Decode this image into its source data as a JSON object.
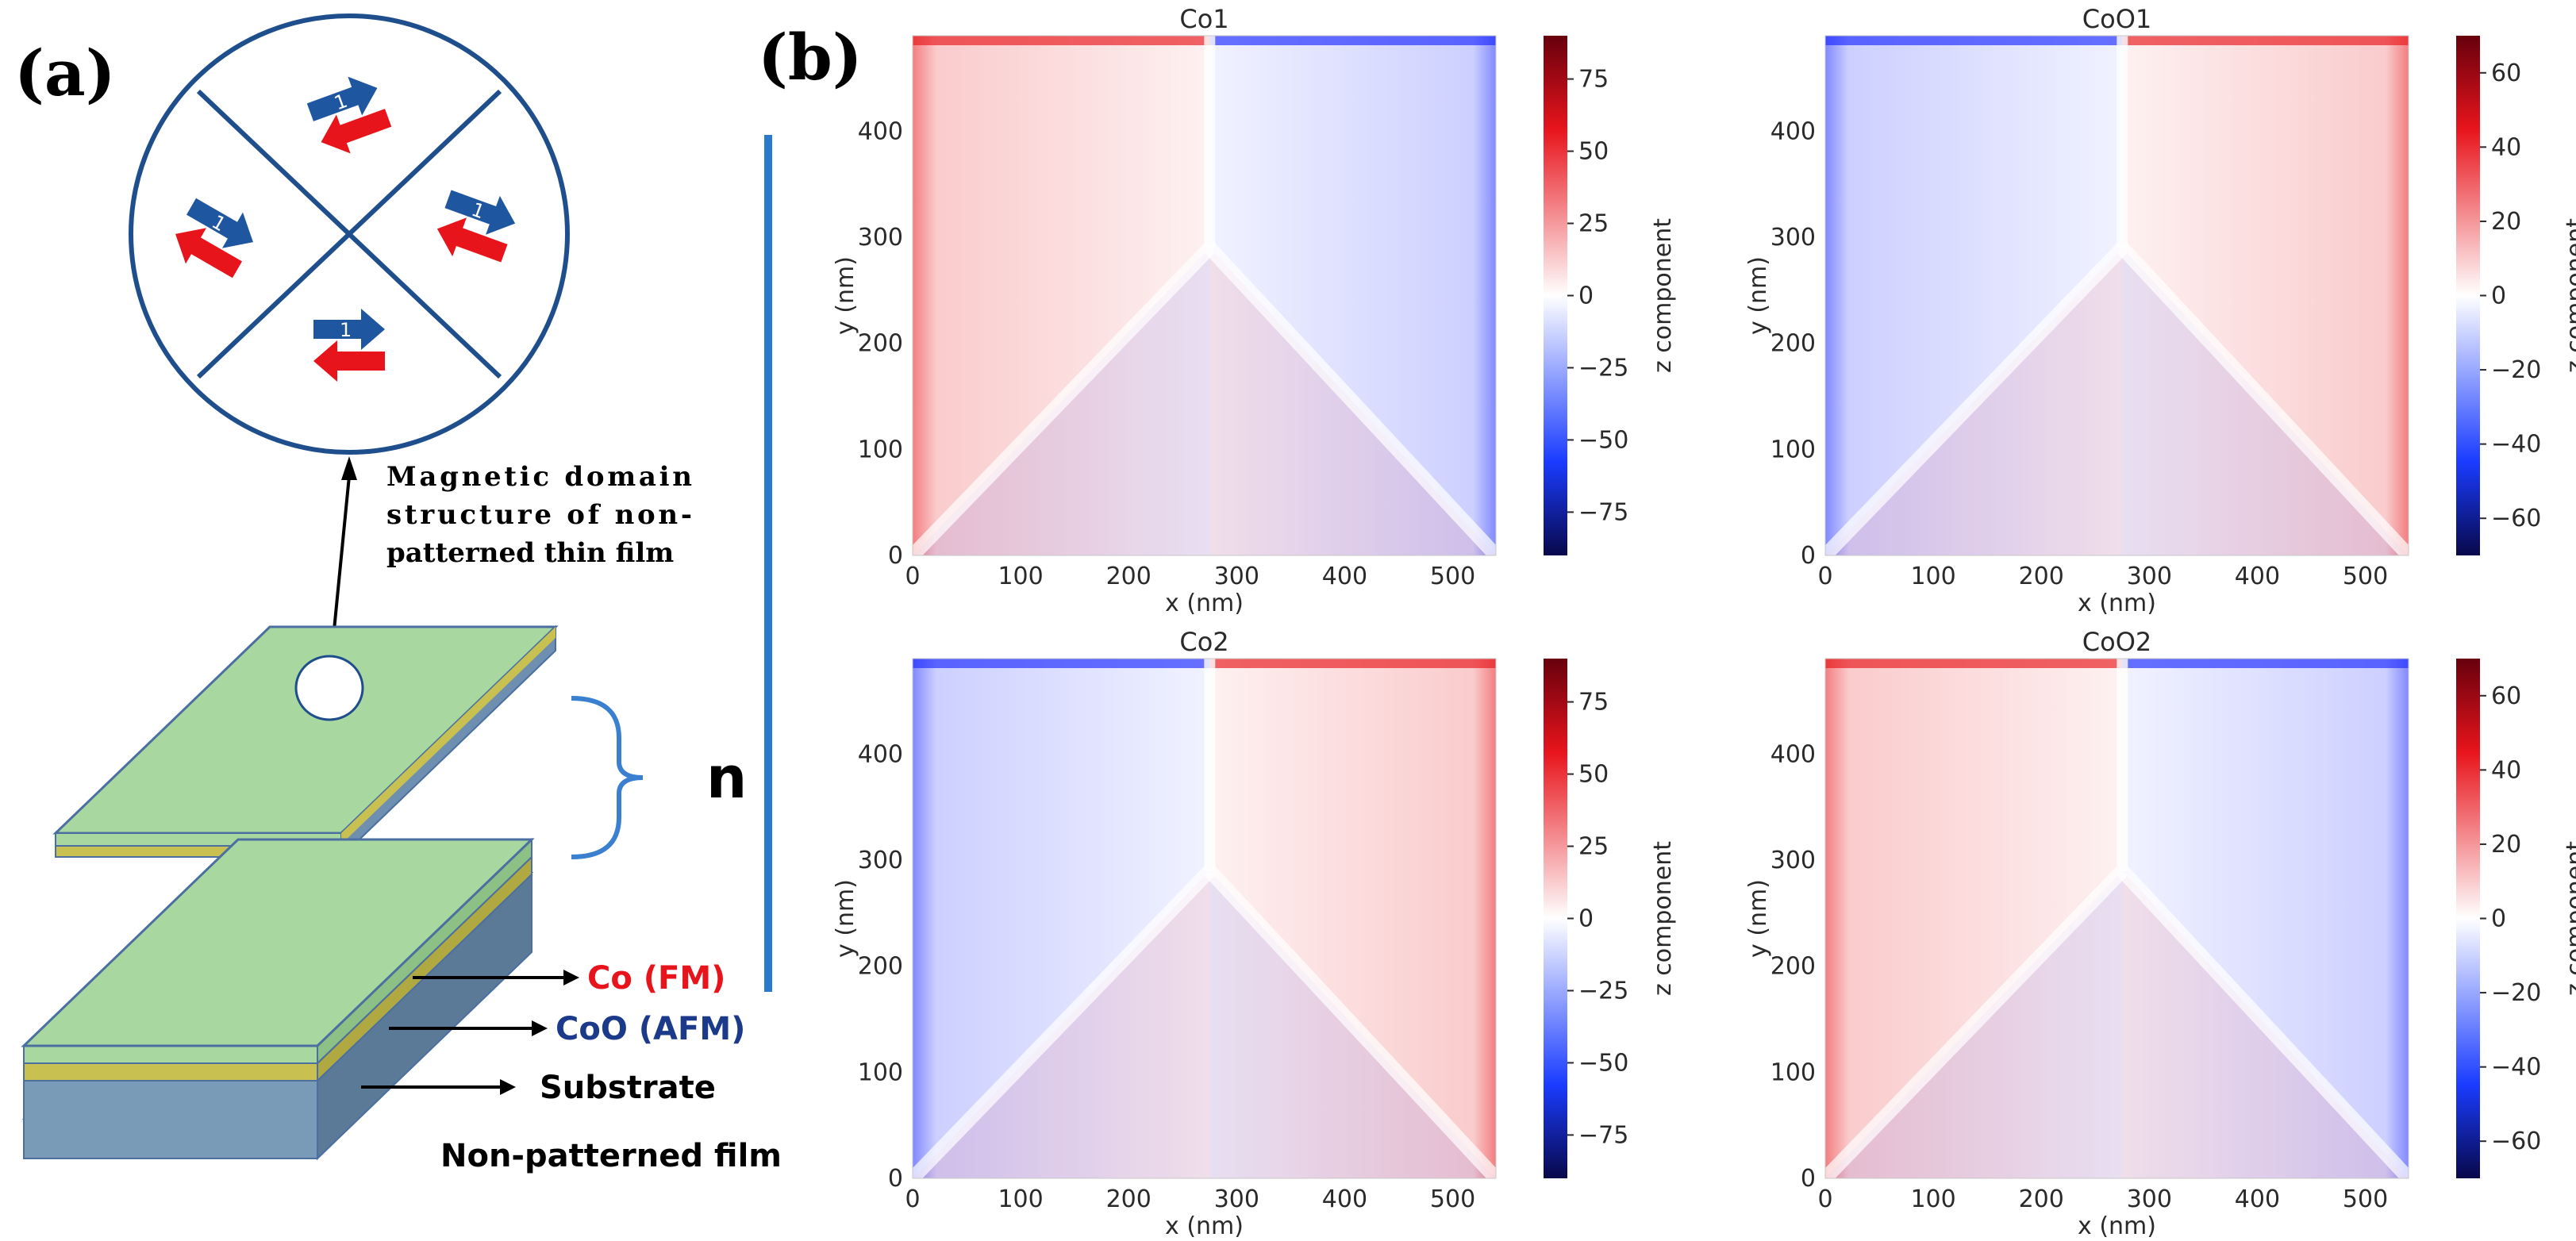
{
  "panel_a": {
    "label": "(a)",
    "annotation_lines": [
      "Magnetic domain",
      "structure of non-",
      "patterned thin film"
    ],
    "repeat_label": "n",
    "layers": [
      {
        "name": "Co (FM)",
        "color": "#e8141c"
      },
      {
        "name": "CoO (AFM)",
        "color": "#1b3a8a"
      },
      {
        "name": "Substrate",
        "color": "#000000"
      }
    ],
    "film_caption": "Non-patterned film",
    "arrow_glyph": "1",
    "colors": {
      "film_top": "#a8d8a0",
      "film_side": "#c8c050",
      "substrate": "#7a9bb8",
      "frame": "#1f4e8c",
      "blue_arrow": "#1f56a0",
      "red_arrow": "#e8141c",
      "bracket": "#3a7fd0",
      "separator": "#2a7acb"
    }
  },
  "panel_b": {
    "label": "(b)"
  },
  "chart_data": [
    {
      "type": "heatmap",
      "title": "Co1",
      "xlabel": "x (nm)",
      "ylabel": "y (nm)",
      "xlim": [
        0,
        540
      ],
      "ylim": [
        0,
        490
      ],
      "xticks": [
        0,
        100,
        200,
        300,
        400,
        500
      ],
      "yticks": [
        0,
        100,
        200,
        300,
        400
      ],
      "colorbar_label": "z component",
      "clim": [
        -90,
        90
      ],
      "colorbar_ticks": [
        75,
        50,
        25,
        0,
        -25,
        -50,
        -75
      ],
      "left_region_sign": "positive",
      "right_region_sign": "negative"
    },
    {
      "type": "heatmap",
      "title": "CoO1",
      "xlabel": "x (nm)",
      "ylabel": "y (nm)",
      "xlim": [
        0,
        540
      ],
      "ylim": [
        0,
        490
      ],
      "xticks": [
        0,
        100,
        200,
        300,
        400,
        500
      ],
      "yticks": [
        0,
        100,
        200,
        300,
        400
      ],
      "colorbar_label": "z component",
      "clim": [
        -70,
        70
      ],
      "colorbar_ticks": [
        60,
        40,
        20,
        0,
        -20,
        -40,
        -60
      ],
      "left_region_sign": "negative",
      "right_region_sign": "positive"
    },
    {
      "type": "heatmap",
      "title": "Co2",
      "xlabel": "x (nm)",
      "ylabel": "y (nm)",
      "xlim": [
        0,
        540
      ],
      "ylim": [
        0,
        490
      ],
      "xticks": [
        0,
        100,
        200,
        300,
        400,
        500
      ],
      "yticks": [
        0,
        100,
        200,
        300,
        400
      ],
      "colorbar_label": "z component",
      "clim": [
        -90,
        90
      ],
      "colorbar_ticks": [
        75,
        50,
        25,
        0,
        -25,
        -50,
        -75
      ],
      "left_region_sign": "negative",
      "right_region_sign": "positive"
    },
    {
      "type": "heatmap",
      "title": "CoO2",
      "xlabel": "x (nm)",
      "ylabel": "y (nm)",
      "xlim": [
        0,
        540
      ],
      "ylim": [
        0,
        490
      ],
      "xticks": [
        0,
        100,
        200,
        300,
        400,
        500
      ],
      "yticks": [
        0,
        100,
        200,
        300,
        400
      ],
      "colorbar_label": "z component",
      "clim": [
        -70,
        70
      ],
      "colorbar_ticks": [
        60,
        40,
        20,
        0,
        -20,
        -40,
        -60
      ],
      "left_region_sign": "positive",
      "right_region_sign": "negative"
    }
  ]
}
